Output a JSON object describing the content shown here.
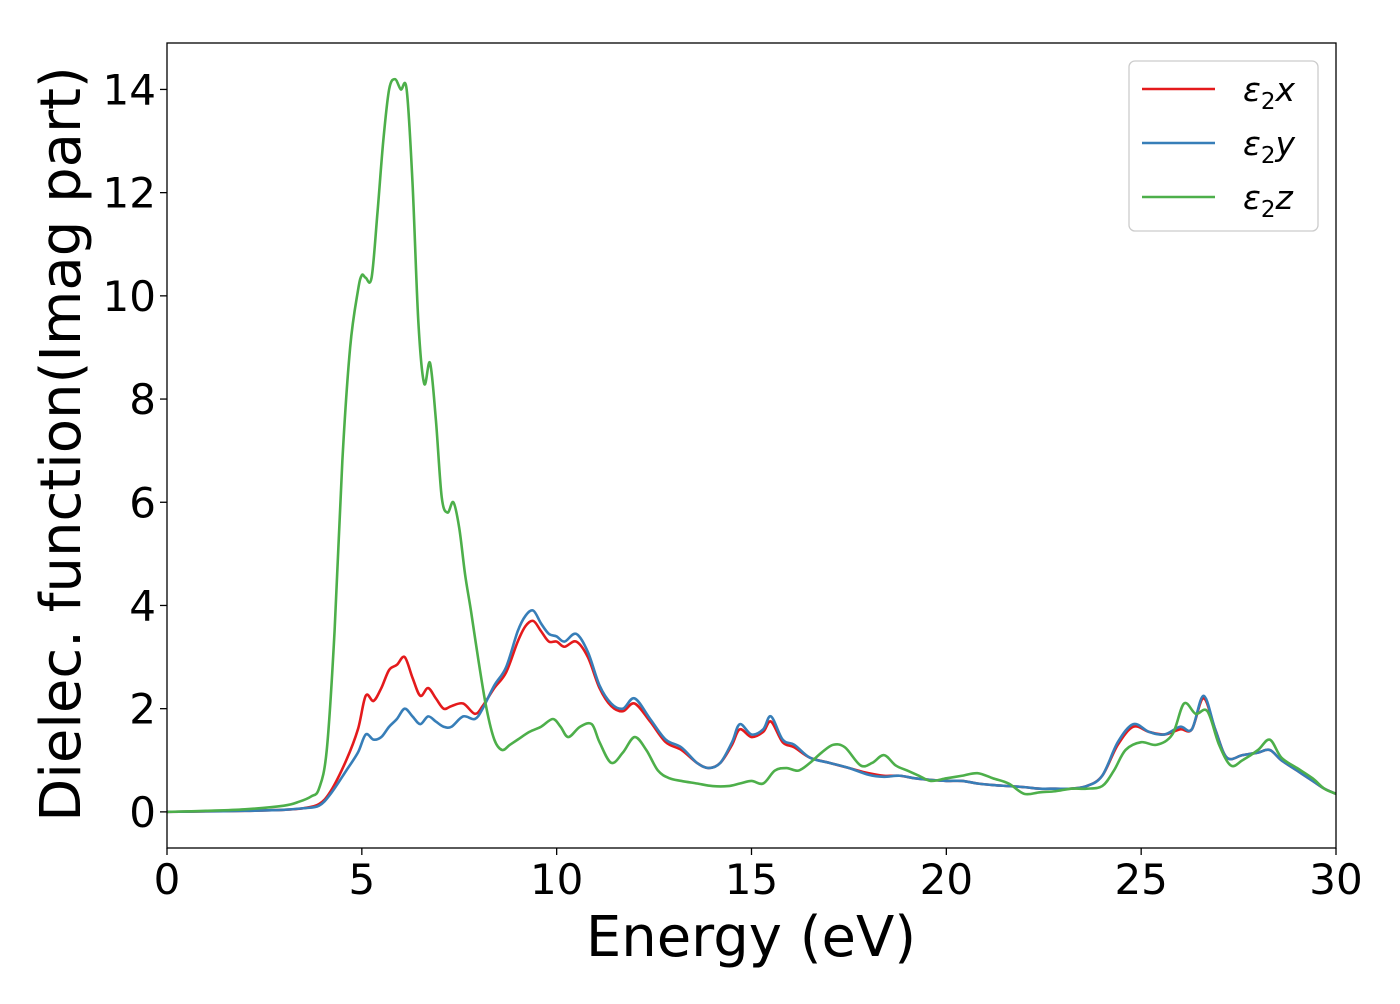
{
  "chart_data": {
    "type": "line",
    "xlabel": "Energy (eV)",
    "ylabel": "Dielec. function(Imag part)",
    "xlim": [
      0,
      30
    ],
    "ylim": [
      -0.7,
      14.9
    ],
    "xticks": [
      0,
      5,
      10,
      15,
      20,
      25,
      30
    ],
    "yticks": [
      0,
      2,
      4,
      6,
      8,
      10,
      12,
      14
    ],
    "grid": false,
    "legend_position": "top-right",
    "series": [
      {
        "name": "ε₂x",
        "legend_base": "ε",
        "legend_sub": "2",
        "legend_suffix": "x",
        "color": "#e41a1c",
        "x": [
          0,
          1,
          2,
          3,
          3.5,
          3.9,
          4.2,
          4.6,
          4.9,
          5.1,
          5.3,
          5.5,
          5.7,
          5.9,
          6.1,
          6.3,
          6.5,
          6.7,
          6.9,
          7.1,
          7.3,
          7.6,
          7.9,
          8.1,
          8.4,
          8.7,
          9.0,
          9.2,
          9.4,
          9.6,
          9.8,
          10.0,
          10.2,
          10.5,
          10.8,
          11.1,
          11.4,
          11.7,
          12.0,
          12.4,
          12.8,
          13.2,
          13.6,
          13.9,
          14.2,
          14.5,
          14.7,
          15.0,
          15.3,
          15.5,
          15.8,
          16.1,
          16.5,
          17.0,
          17.5,
          18.0,
          18.4,
          18.8,
          19.2,
          19.6,
          20.0,
          20.4,
          20.8,
          21.2,
          21.6,
          22.0,
          22.4,
          22.8,
          23.2,
          23.6,
          24.0,
          24.4,
          24.8,
          25.2,
          25.6,
          26.0,
          26.3,
          26.6,
          26.9,
          27.2,
          27.6,
          28.0,
          28.3,
          28.6,
          29.0,
          29.4,
          29.7,
          30.0
        ],
        "values": [
          0,
          0.01,
          0.02,
          0.04,
          0.07,
          0.15,
          0.4,
          1.0,
          1.6,
          2.25,
          2.15,
          2.4,
          2.75,
          2.85,
          3.0,
          2.6,
          2.25,
          2.4,
          2.2,
          2.0,
          2.05,
          2.1,
          1.9,
          2.05,
          2.4,
          2.7,
          3.3,
          3.6,
          3.7,
          3.5,
          3.3,
          3.3,
          3.2,
          3.3,
          3.0,
          2.4,
          2.05,
          1.95,
          2.1,
          1.75,
          1.35,
          1.2,
          0.95,
          0.85,
          0.95,
          1.3,
          1.6,
          1.45,
          1.55,
          1.75,
          1.35,
          1.25,
          1.05,
          0.95,
          0.85,
          0.75,
          0.7,
          0.7,
          0.65,
          0.62,
          0.6,
          0.6,
          0.55,
          0.52,
          0.5,
          0.48,
          0.45,
          0.45,
          0.45,
          0.5,
          0.7,
          1.3,
          1.65,
          1.55,
          1.5,
          1.6,
          1.6,
          2.2,
          1.6,
          1.05,
          1.1,
          1.15,
          1.2,
          1.0,
          0.8,
          0.6,
          0.45,
          0.35
        ]
      },
      {
        "name": "ε₂y",
        "legend_base": "ε",
        "legend_sub": "2",
        "legend_suffix": "y",
        "color": "#377eb8",
        "x": [
          0,
          1,
          2,
          3,
          3.5,
          3.9,
          4.2,
          4.6,
          4.9,
          5.1,
          5.3,
          5.5,
          5.7,
          5.9,
          6.1,
          6.3,
          6.5,
          6.7,
          6.9,
          7.1,
          7.3,
          7.6,
          7.9,
          8.1,
          8.4,
          8.7,
          9.0,
          9.2,
          9.4,
          9.6,
          9.8,
          10.0,
          10.2,
          10.5,
          10.8,
          11.1,
          11.4,
          11.7,
          12.0,
          12.4,
          12.8,
          13.2,
          13.6,
          13.9,
          14.2,
          14.5,
          14.7,
          15.0,
          15.3,
          15.5,
          15.8,
          16.1,
          16.5,
          17.0,
          17.5,
          18.0,
          18.4,
          18.8,
          19.2,
          19.6,
          20.0,
          20.4,
          20.8,
          21.2,
          21.6,
          22.0,
          22.4,
          22.8,
          23.2,
          23.6,
          24.0,
          24.4,
          24.8,
          25.2,
          25.6,
          26.0,
          26.3,
          26.6,
          26.9,
          27.2,
          27.6,
          28.0,
          28.3,
          28.6,
          29.0,
          29.4,
          29.7,
          30.0
        ],
        "values": [
          0,
          0.01,
          0.02,
          0.04,
          0.07,
          0.12,
          0.35,
          0.8,
          1.15,
          1.5,
          1.4,
          1.45,
          1.65,
          1.8,
          2.0,
          1.85,
          1.7,
          1.85,
          1.75,
          1.65,
          1.65,
          1.85,
          1.8,
          2.0,
          2.45,
          2.8,
          3.5,
          3.8,
          3.9,
          3.65,
          3.45,
          3.4,
          3.3,
          3.45,
          3.1,
          2.45,
          2.1,
          2.0,
          2.2,
          1.8,
          1.4,
          1.25,
          0.95,
          0.85,
          0.95,
          1.35,
          1.7,
          1.5,
          1.6,
          1.85,
          1.4,
          1.3,
          1.05,
          0.95,
          0.85,
          0.72,
          0.68,
          0.7,
          0.65,
          0.62,
          0.6,
          0.6,
          0.55,
          0.52,
          0.5,
          0.48,
          0.45,
          0.45,
          0.45,
          0.5,
          0.7,
          1.35,
          1.7,
          1.55,
          1.5,
          1.65,
          1.6,
          2.25,
          1.6,
          1.05,
          1.1,
          1.15,
          1.2,
          1.0,
          0.8,
          0.6,
          0.45,
          0.35
        ]
      },
      {
        "name": "ε₂z",
        "legend_base": "ε",
        "legend_sub": "2",
        "legend_suffix": "z",
        "color": "#4daf4a",
        "x": [
          0,
          1,
          2,
          3,
          3.4,
          3.7,
          3.9,
          4.1,
          4.3,
          4.5,
          4.7,
          4.9,
          5.0,
          5.1,
          5.25,
          5.4,
          5.55,
          5.7,
          5.85,
          6.0,
          6.15,
          6.3,
          6.45,
          6.6,
          6.75,
          6.9,
          7.05,
          7.2,
          7.35,
          7.5,
          7.65,
          7.8,
          8.0,
          8.2,
          8.4,
          8.6,
          8.8,
          9.0,
          9.3,
          9.6,
          9.9,
          10.1,
          10.3,
          10.6,
          10.9,
          11.1,
          11.4,
          11.7,
          12.0,
          12.3,
          12.6,
          12.9,
          13.2,
          13.6,
          14.0,
          14.4,
          14.7,
          15.0,
          15.3,
          15.6,
          15.9,
          16.2,
          16.5,
          16.8,
          17.1,
          17.4,
          17.8,
          18.1,
          18.4,
          18.7,
          19.0,
          19.3,
          19.6,
          20.0,
          20.4,
          20.8,
          21.2,
          21.6,
          22.0,
          22.4,
          22.8,
          23.2,
          23.6,
          24.0,
          24.3,
          24.6,
          25.0,
          25.4,
          25.8,
          26.1,
          26.4,
          26.7,
          27.0,
          27.3,
          27.6,
          28.0,
          28.3,
          28.6,
          29.0,
          29.4,
          29.7,
          30.0
        ],
        "values": [
          0,
          0.02,
          0.05,
          0.12,
          0.2,
          0.3,
          0.45,
          1.2,
          3.5,
          6.8,
          9.0,
          10.1,
          10.4,
          10.35,
          10.35,
          11.6,
          13.0,
          14.0,
          14.2,
          14.0,
          14.0,
          12.2,
          9.5,
          8.3,
          8.7,
          7.6,
          6.1,
          5.8,
          6.0,
          5.5,
          4.6,
          3.9,
          2.9,
          2.0,
          1.4,
          1.2,
          1.3,
          1.4,
          1.55,
          1.65,
          1.8,
          1.65,
          1.45,
          1.65,
          1.7,
          1.35,
          0.95,
          1.15,
          1.45,
          1.2,
          0.8,
          0.65,
          0.6,
          0.55,
          0.5,
          0.5,
          0.55,
          0.6,
          0.55,
          0.8,
          0.85,
          0.8,
          0.95,
          1.15,
          1.3,
          1.25,
          0.9,
          0.95,
          1.1,
          0.9,
          0.8,
          0.7,
          0.6,
          0.65,
          0.7,
          0.75,
          0.65,
          0.55,
          0.35,
          0.38,
          0.4,
          0.45,
          0.45,
          0.5,
          0.8,
          1.2,
          1.35,
          1.3,
          1.5,
          2.1,
          1.9,
          1.95,
          1.3,
          0.9,
          1.0,
          1.2,
          1.4,
          1.05,
          0.85,
          0.65,
          0.45,
          0.35
        ]
      }
    ]
  }
}
